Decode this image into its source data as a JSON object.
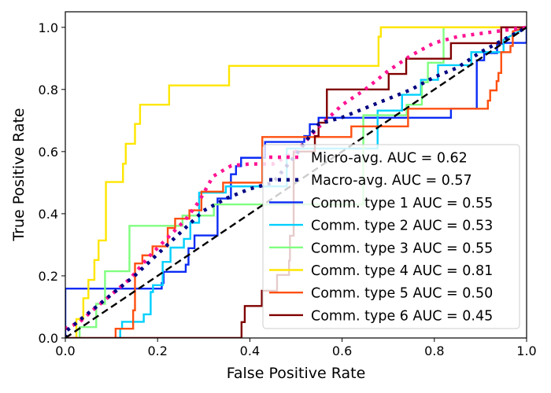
{
  "chart_data": {
    "type": "line",
    "title": "",
    "xlabel": "False Positive Rate",
    "ylabel": "True Positive Rate",
    "xlim": [
      0.0,
      1.0
    ],
    "ylim": [
      0.0,
      1.05
    ],
    "xticks": [
      "0.0",
      "0.2",
      "0.4",
      "0.6",
      "0.8",
      "1.0"
    ],
    "yticks": [
      "0.0",
      "0.2",
      "0.4",
      "0.6",
      "0.8",
      "1.0"
    ],
    "grid": false,
    "legend_position": "lower-right",
    "chance_line": {
      "name": "chance",
      "color": "#000000",
      "style": "dashed",
      "x": [
        0,
        1
      ],
      "y": [
        0,
        1
      ]
    },
    "series": [
      {
        "name": "Micro-avg. AUC = 0.62",
        "color": "#ff1493",
        "style": "dotted-thick",
        "x": [
          0.0,
          0.0,
          0.03,
          0.06,
          0.1,
          0.14,
          0.18,
          0.22,
          0.26,
          0.29,
          0.32,
          0.36,
          0.4,
          0.45,
          0.5,
          0.55,
          0.6,
          0.65,
          0.7,
          0.75,
          0.8,
          0.85,
          0.9,
          0.95,
          1.0
        ],
        "y": [
          0.0,
          0.03,
          0.05,
          0.09,
          0.14,
          0.19,
          0.26,
          0.32,
          0.38,
          0.44,
          0.52,
          0.555,
          0.56,
          0.56,
          0.6,
          0.68,
          0.75,
          0.8,
          0.86,
          0.91,
          0.95,
          0.97,
          0.98,
          0.99,
          1.0
        ]
      },
      {
        "name": "Macro-avg. AUC = 0.57",
        "color": "#000080",
        "style": "dotted-thick",
        "x": [
          0.0,
          0.0,
          0.05,
          0.1,
          0.15,
          0.2,
          0.25,
          0.3,
          0.35,
          0.4,
          0.45,
          0.5,
          0.55,
          0.6,
          0.65,
          0.7,
          0.75,
          0.8,
          0.85,
          0.9,
          0.95,
          1.0
        ],
        "y": [
          0.0,
          0.02,
          0.08,
          0.14,
          0.2,
          0.27,
          0.34,
          0.41,
          0.45,
          0.48,
          0.5,
          0.59,
          0.69,
          0.71,
          0.74,
          0.77,
          0.8,
          0.84,
          0.87,
          0.92,
          0.96,
          1.0
        ]
      },
      {
        "name": "Comm. type 1 AUC = 0.55",
        "color": "#0a2bf5",
        "style": "solid",
        "x": [
          0.0,
          0.0,
          0.209,
          0.209,
          0.213,
          0.213,
          0.261,
          0.261,
          0.267,
          0.267,
          0.28,
          0.28,
          0.33,
          0.33,
          0.359,
          0.359,
          0.37,
          0.37,
          0.381,
          0.381,
          0.433,
          0.433,
          0.518,
          0.518,
          0.53,
          0.53,
          0.549,
          0.549,
          0.836,
          0.836,
          0.892,
          0.892,
          0.908,
          0.908,
          0.936,
          0.936,
          0.95,
          0.95,
          1.0,
          1.0
        ],
        "y": [
          0.0,
          0.159,
          0.159,
          0.177,
          0.177,
          0.213,
          0.213,
          0.236,
          0.236,
          0.289,
          0.289,
          0.33,
          0.33,
          0.449,
          0.449,
          0.527,
          0.527,
          0.553,
          0.553,
          0.58,
          0.58,
          0.631,
          0.631,
          0.65,
          0.65,
          0.688,
          0.688,
          0.709,
          0.709,
          0.738,
          0.738,
          0.894,
          0.894,
          0.917,
          0.917,
          0.947,
          0.947,
          0.95,
          0.95,
          1.0
        ]
      },
      {
        "name": "Comm. type 2 AUC = 0.53",
        "color": "#00d0ff",
        "style": "solid",
        "x": [
          0.119,
          0.119,
          0.123,
          0.123,
          0.17,
          0.17,
          0.185,
          0.185,
          0.19,
          0.19,
          0.211,
          0.211,
          0.228,
          0.228,
          0.257,
          0.257,
          0.271,
          0.271,
          0.29,
          0.29,
          0.348,
          0.348,
          0.48,
          0.48,
          0.677,
          0.677,
          0.73,
          0.73,
          0.771,
          0.771,
          0.808,
          0.808,
          0.88,
          0.88,
          0.95,
          0.95,
          1.0
        ],
        "y": [
          0.0,
          0.03,
          0.03,
          0.052,
          0.052,
          0.076,
          0.076,
          0.148,
          0.148,
          0.17,
          0.17,
          0.245,
          0.245,
          0.291,
          0.291,
          0.319,
          0.319,
          0.371,
          0.371,
          0.468,
          0.468,
          0.488,
          0.488,
          0.61,
          0.61,
          0.732,
          0.732,
          0.783,
          0.783,
          0.831,
          0.831,
          0.878,
          0.878,
          0.92,
          0.92,
          0.96,
          1.0
        ]
      },
      {
        "name": "Comm. type 3 AUC = 0.55",
        "color": "#80ff80",
        "style": "solid",
        "x": [
          0.031,
          0.031,
          0.067,
          0.067,
          0.086,
          0.086,
          0.139,
          0.139,
          0.254,
          0.254,
          0.322,
          0.322,
          0.646,
          0.646,
          0.74,
          0.74,
          0.773,
          0.773,
          0.786,
          0.786,
          0.82,
          0.82,
          1.0
        ],
        "y": [
          0.0,
          0.035,
          0.035,
          0.11,
          0.11,
          0.215,
          0.215,
          0.361,
          0.361,
          0.394,
          0.394,
          0.43,
          0.43,
          0.717,
          0.717,
          0.751,
          0.751,
          0.823,
          0.823,
          0.886,
          0.886,
          1.0,
          1.0
        ]
      },
      {
        "name": "Comm. type 4 AUC = 0.81",
        "color": "#ffe600",
        "style": "solid",
        "x": [
          0.024,
          0.024,
          0.039,
          0.039,
          0.05,
          0.05,
          0.063,
          0.063,
          0.072,
          0.072,
          0.088,
          0.088,
          0.125,
          0.125,
          0.131,
          0.131,
          0.151,
          0.151,
          0.162,
          0.162,
          0.225,
          0.225,
          0.355,
          0.355,
          0.679,
          0.679,
          0.684,
          0.684,
          1.0
        ],
        "y": [
          0.0,
          0.061,
          0.061,
          0.128,
          0.128,
          0.187,
          0.187,
          0.251,
          0.251,
          0.314,
          0.314,
          0.502,
          0.502,
          0.561,
          0.561,
          0.625,
          0.625,
          0.689,
          0.689,
          0.751,
          0.751,
          0.813,
          0.813,
          0.876,
          0.876,
          0.97,
          0.97,
          1.0,
          1.0
        ]
      },
      {
        "name": "Comm. type 5 AUC = 0.50",
        "color": "#ff5010",
        "style": "solid",
        "x": [
          0.109,
          0.109,
          0.147,
          0.147,
          0.151,
          0.151,
          0.167,
          0.167,
          0.189,
          0.189,
          0.222,
          0.222,
          0.238,
          0.238,
          0.269,
          0.269,
          0.295,
          0.295,
          0.342,
          0.342,
          0.427,
          0.427,
          0.62,
          0.62,
          0.743,
          0.743,
          0.916,
          0.916,
          0.921,
          0.921,
          0.935,
          0.935,
          0.939,
          0.939,
          0.945,
          0.945,
          0.965,
          0.965,
          0.97,
          0.97,
          1.0
        ],
        "y": [
          0.0,
          0.03,
          0.03,
          0.089,
          0.089,
          0.24,
          0.24,
          0.266,
          0.266,
          0.295,
          0.295,
          0.354,
          0.354,
          0.384,
          0.384,
          0.411,
          0.411,
          0.471,
          0.471,
          0.5,
          0.5,
          0.647,
          0.647,
          0.681,
          0.681,
          0.738,
          0.738,
          0.764,
          0.764,
          0.797,
          0.797,
          0.827,
          0.827,
          0.853,
          0.853,
          0.92,
          0.92,
          0.94,
          0.94,
          0.987,
          1.0
        ]
      },
      {
        "name": "Comm. type 6 AUC = 0.45",
        "color": "#800000",
        "style": "solid",
        "x": [
          0.0,
          0.382,
          0.382,
          0.389,
          0.389,
          0.426,
          0.426,
          0.459,
          0.459,
          0.485,
          0.485,
          0.487,
          0.487,
          0.495,
          0.495,
          0.541,
          0.541,
          0.549,
          0.549,
          0.567,
          0.567,
          0.701,
          0.701,
          0.739,
          0.739,
          0.836,
          0.836,
          0.945,
          0.945,
          1.0
        ],
        "y": [
          0.0,
          0.0,
          0.051,
          0.051,
          0.103,
          0.103,
          0.152,
          0.152,
          0.203,
          0.203,
          0.249,
          0.249,
          0.329,
          0.329,
          0.6,
          0.6,
          0.65,
          0.65,
          0.693,
          0.693,
          0.8,
          0.8,
          0.85,
          0.85,
          0.899,
          0.899,
          0.949,
          0.949,
          1.0,
          1.0
        ]
      }
    ]
  }
}
